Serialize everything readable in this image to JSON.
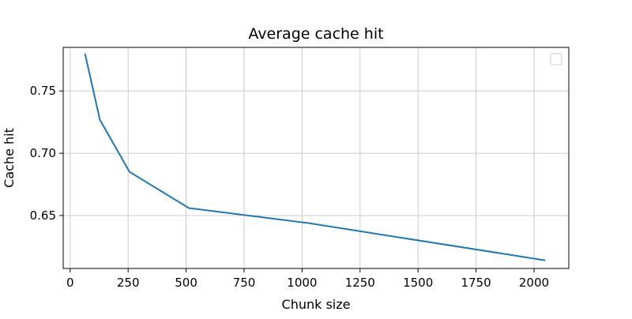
{
  "chart_data": {
    "type": "line",
    "title": "Average cache hit",
    "xlabel": "Chunk size",
    "ylabel": "Cache hit",
    "xlim": [
      -30,
      2150
    ],
    "ylim": [
      0.6075,
      0.785
    ],
    "x_ticks": [
      0,
      250,
      500,
      750,
      1000,
      1250,
      1500,
      1750,
      2000
    ],
    "x_tick_labels": [
      "0",
      "250",
      "500",
      "750",
      "1000",
      "1250",
      "1500",
      "1750",
      "2000"
    ],
    "y_ticks": [
      0.65,
      0.7,
      0.75
    ],
    "y_tick_labels": [
      "0.65",
      "0.70",
      "0.75"
    ],
    "grid": true,
    "legend": "top-right",
    "series": [
      {
        "color": "#1f77b4",
        "x": [
          64,
          128,
          256,
          512,
          1024,
          2048
        ],
        "y": [
          0.78,
          0.727,
          0.685,
          0.656,
          0.644,
          0.614
        ]
      }
    ]
  }
}
